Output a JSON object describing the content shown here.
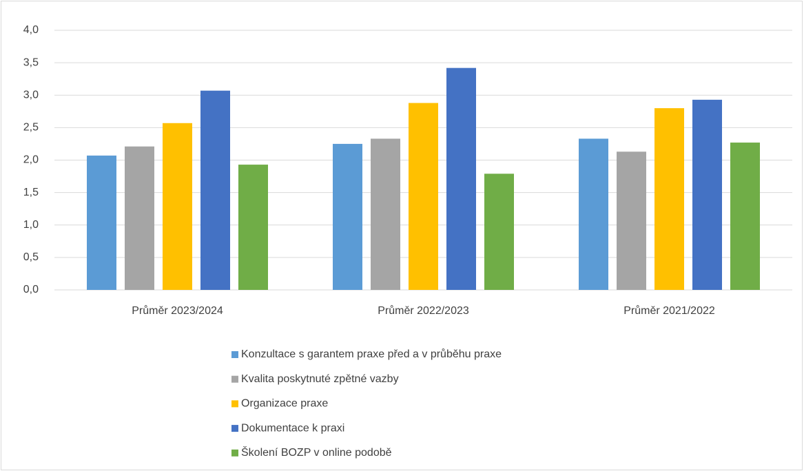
{
  "chart_data": {
    "type": "bar",
    "categories": [
      "Průměr 2023/2024",
      "Průměr 2022/2023",
      "Průměr 2021/2022"
    ],
    "series": [
      {
        "name": "Konzultace s garantem praxe před a v průběhu praxe",
        "color": "#5b9bd5",
        "values": [
          2.07,
          2.25,
          2.33
        ]
      },
      {
        "name": "Kvalita poskytnuté zpětné vazby",
        "color": "#a5a5a5",
        "values": [
          2.21,
          2.33,
          2.13
        ]
      },
      {
        "name": "Organizace praxe",
        "color": "#ffc000",
        "values": [
          2.57,
          2.88,
          2.8
        ]
      },
      {
        "name": "Dokumentace k praxi",
        "color": "#4472c4",
        "values": [
          3.07,
          3.42,
          2.93
        ]
      },
      {
        "name": "Školení BOZP v online podobě",
        "color": "#70ad47",
        "values": [
          1.93,
          1.79,
          2.27
        ]
      }
    ],
    "ylim": [
      0,
      4
    ],
    "yticks": [
      {
        "value": 0,
        "label": "0,0"
      },
      {
        "value": 0.5,
        "label": "0,5"
      },
      {
        "value": 1,
        "label": "1,0"
      },
      {
        "value": 1.5,
        "label": "1,5"
      },
      {
        "value": 2,
        "label": "2,0"
      },
      {
        "value": 2.5,
        "label": "2,5"
      },
      {
        "value": 3,
        "label": "3,0"
      },
      {
        "value": 3.5,
        "label": "3,5"
      },
      {
        "value": 4,
        "label": "4,0"
      }
    ],
    "grid": true,
    "legend": "bottom"
  }
}
